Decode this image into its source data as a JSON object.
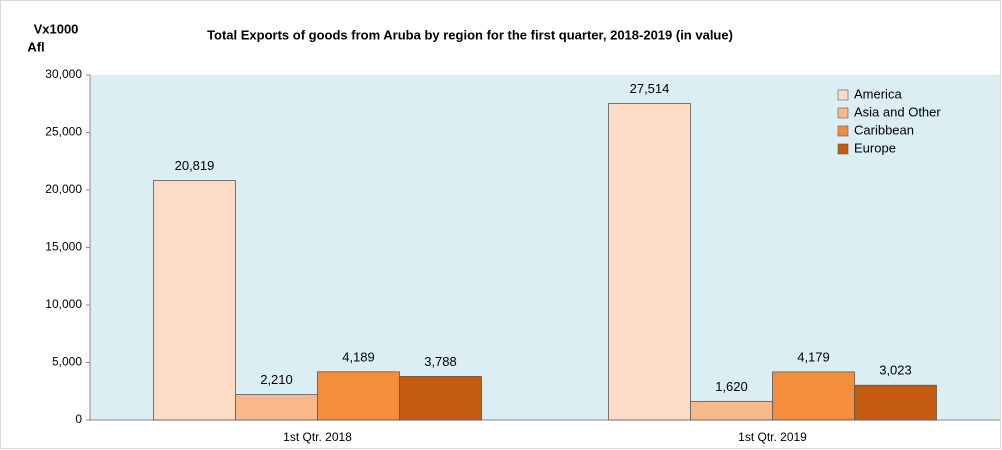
{
  "chart_data": {
    "type": "bar",
    "title": "Total Exports of goods from Aruba  by region for the first quarter, 2018-2019  (in value)",
    "ylabel": [
      "Vx1000",
      "Afl"
    ],
    "categories": [
      "1st Qtr. 2018",
      "1st Qtr. 2019"
    ],
    "series": [
      {
        "name": "America",
        "color": "#fcdcc4",
        "values": [
          20819,
          27514
        ],
        "value_labels": [
          "20,819",
          "27,514"
        ]
      },
      {
        "name": "Asia and Other",
        "color": "#f9b98a",
        "values": [
          2210,
          1620
        ],
        "value_labels": [
          "2,210",
          "1,620"
        ]
      },
      {
        "name": "Caribbean",
        "color": "#f58e3c",
        "values": [
          4189,
          4179
        ],
        "value_labels": [
          "4,189",
          "4,179"
        ]
      },
      {
        "name": "Europe",
        "color": "#c55a11",
        "values": [
          3788,
          3023
        ],
        "value_labels": [
          "3,788",
          "3,023"
        ]
      }
    ],
    "ylim": [
      0,
      30000
    ],
    "yticks": [
      0,
      {
        "value": 5000,
        "label": "5,000"
      },
      {
        "value": 10000,
        "label": "10,000"
      },
      {
        "value": 15000,
        "label": "15,000"
      },
      {
        "value": 20000,
        "label": "20,000"
      },
      {
        "value": 25000,
        "label": "25,000"
      },
      {
        "value": 30000,
        "label": "30,000"
      }
    ],
    "legend": "top-right",
    "background": "#dbeef4"
  }
}
